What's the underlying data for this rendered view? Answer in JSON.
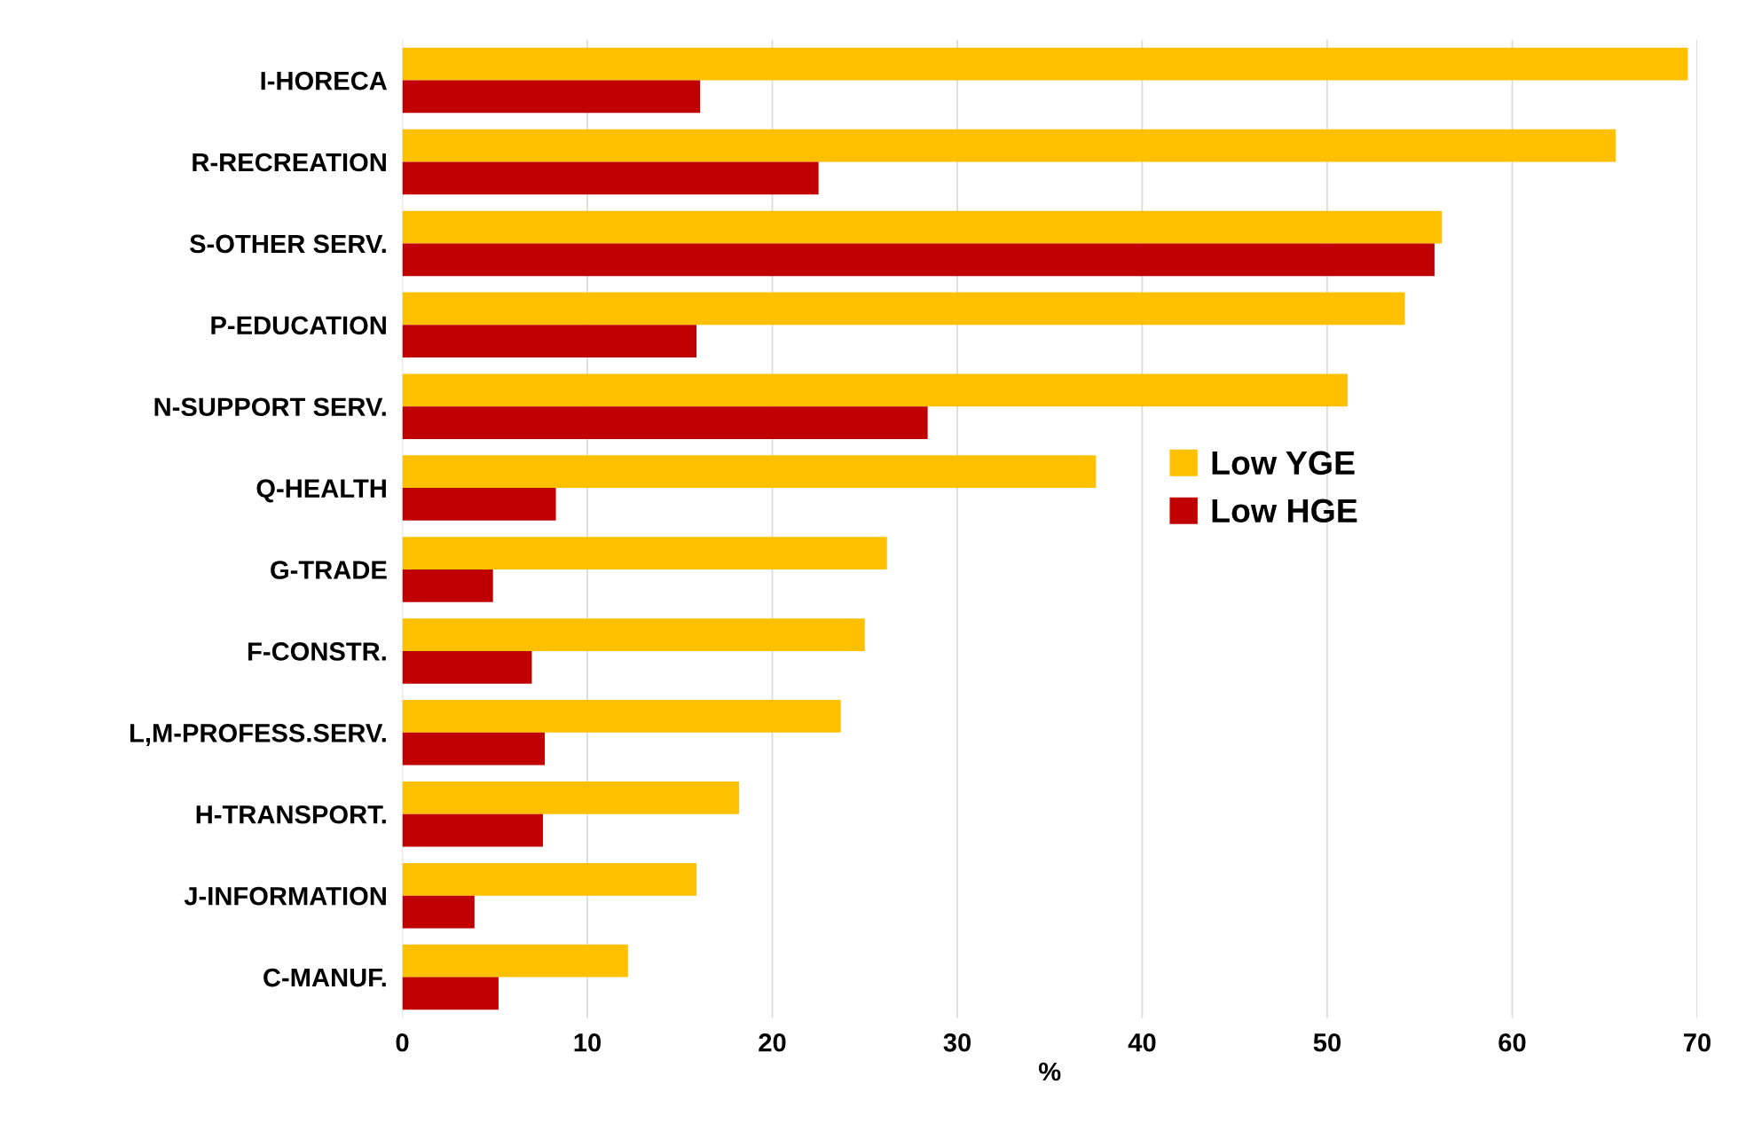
{
  "chart_data": {
    "type": "bar",
    "orientation": "horizontal",
    "xlabel": "%",
    "categories": [
      "I-HORECA",
      "R-RECREATION",
      "S-OTHER SERV.",
      "P-EDUCATION",
      "N-SUPPORT SERV.",
      "Q-HEALTH",
      "G-TRADE",
      "F-CONSTR.",
      "L,M-PROFESS.SERV.",
      "H-TRANSPORT.",
      "J-INFORMATION",
      "C-MANUF."
    ],
    "series": [
      {
        "name": "Low YGE",
        "color": "#ffc000",
        "values": [
          69.5,
          65.6,
          56.2,
          54.2,
          51.1,
          37.5,
          26.2,
          25.0,
          23.7,
          18.2,
          15.9,
          12.2
        ]
      },
      {
        "name": "Low HGE",
        "color": "#c00000",
        "values": [
          16.1,
          22.5,
          55.8,
          15.9,
          28.4,
          8.3,
          4.9,
          7.0,
          7.7,
          7.6,
          3.9,
          5.2
        ]
      }
    ],
    "xlim": [
      0,
      70
    ],
    "xticks": [
      0,
      10,
      20,
      30,
      40,
      50,
      60,
      70
    ],
    "grid": "x",
    "legend": "right"
  }
}
